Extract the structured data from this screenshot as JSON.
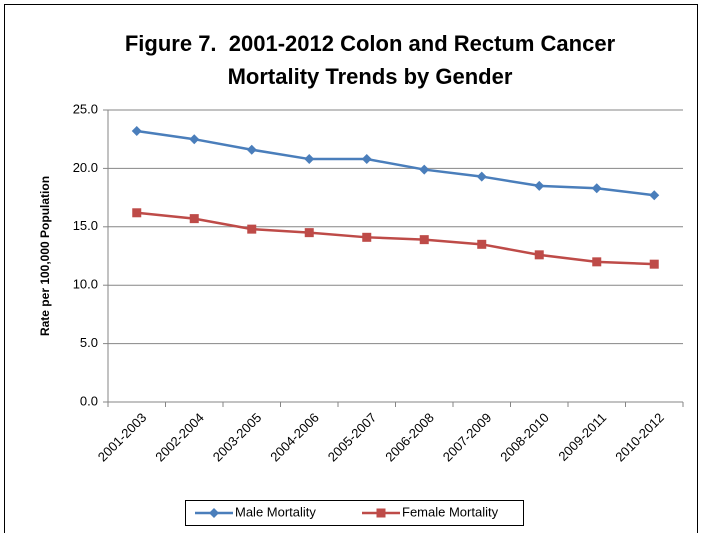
{
  "chart_data": {
    "type": "line",
    "title": [
      "Figure 7.  2001-2012 Colon and Rectum Cancer",
      "Mortality Trends by Gender"
    ],
    "y_label": "Rate per 100,000 Population",
    "categories": [
      "2001-2003",
      "2002-2004",
      "2003-2005",
      "2004-2006",
      "2005-2007",
      "2006-2008",
      "2007-2009",
      "2008-2010",
      "2009-2011",
      "2010-2012"
    ],
    "series": [
      {
        "name": "Male Mortality",
        "color": "#4a7ebb",
        "marker": "diamond",
        "values": [
          23.2,
          22.5,
          21.6,
          20.8,
          20.8,
          19.9,
          19.3,
          18.5,
          18.3,
          17.7
        ]
      },
      {
        "name": "Female Mortality",
        "color": "#be4b48",
        "marker": "square",
        "values": [
          16.2,
          15.7,
          14.8,
          14.5,
          14.1,
          13.9,
          13.5,
          12.6,
          12.0,
          11.8
        ]
      }
    ],
    "ylim": [
      0,
      25
    ],
    "yticks": [
      {
        "value": 0,
        "label": "0.0"
      },
      {
        "value": 5,
        "label": "5.0"
      },
      {
        "value": 10,
        "label": "10.0"
      },
      {
        "value": 15,
        "label": "15.0"
      },
      {
        "value": 20,
        "label": "20.0"
      },
      {
        "value": 25,
        "label": "25.0"
      }
    ],
    "grid": true,
    "legend": "bottom"
  }
}
